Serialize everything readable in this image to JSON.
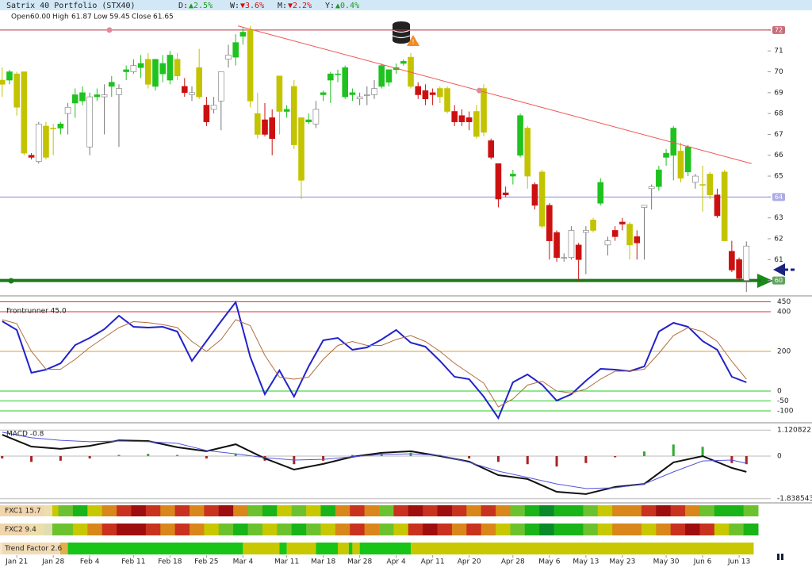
{
  "header": {
    "title": "Satrix 40 Portfolio (STX40)",
    "items": [
      {
        "label": "D:",
        "change": "▲2.5%",
        "color": "#1a9a1a"
      },
      {
        "label": "W:",
        "change": "▼3.6%",
        "color": "#cc1010"
      },
      {
        "label": "M:",
        "change": "▼2.2%",
        "color": "#cc1010"
      },
      {
        "label": "Y:",
        "change": "▲0.4%",
        "color": "#1a9a1a"
      }
    ],
    "ohlc": [
      {
        "label": "Open",
        "value": "60.00"
      },
      {
        "label": "High",
        "value": "61.87"
      },
      {
        "label": "Low",
        "value": "59.45"
      },
      {
        "label": "Close",
        "value": "61.65"
      }
    ]
  },
  "x_axis": {
    "xlim": [
      -0.3,
      103.6
    ],
    "ticks": [
      {
        "value": 2,
        "label": "Jan 21"
      },
      {
        "value": 7,
        "label": "Jan 28"
      },
      {
        "value": 12,
        "label": "Feb 4"
      },
      {
        "value": 18,
        "label": "Feb 11"
      },
      {
        "value": 23,
        "label": "Feb 18"
      },
      {
        "value": 28,
        "label": "Feb 25"
      },
      {
        "value": 33,
        "label": "Mar 4"
      },
      {
        "value": 39,
        "label": "Mar 11"
      },
      {
        "value": 44,
        "label": "Mar 18"
      },
      {
        "value": 49,
        "label": "Mar 28"
      },
      {
        "value": 54,
        "label": "Apr 4"
      },
      {
        "value": 59,
        "label": "Apr 11"
      },
      {
        "value": 64,
        "label": "Apr 20"
      },
      {
        "value": 70,
        "label": "Apr 28"
      },
      {
        "value": 75,
        "label": "May 6"
      },
      {
        "value": 80,
        "label": "May 13"
      },
      {
        "value": 85,
        "label": "May 23"
      },
      {
        "value": 91,
        "label": "May 30"
      },
      {
        "value": 96,
        "label": "Jun 6"
      },
      {
        "value": 101,
        "label": "Jun 13"
      }
    ]
  },
  "chart_data": [
    {
      "type": "candlestick",
      "open": [
        69.4,
        69.6,
        69.9,
        70.0,
        66.0,
        67.5,
        65.9,
        67.3,
        67.3,
        68.0,
        68.5,
        68.6,
        66.4,
        68.8,
        68.8,
        69.3,
        68.9,
        70.0,
        70.3,
        70.4,
        70.6,
        69.3,
        69.9,
        70.8,
        70.6,
        69.3,
        69.0,
        70.2,
        68.4,
        68.4,
        68.6,
        70.8,
        70.7,
        71.7,
        72.0,
        68.0,
        67.7,
        67.8,
        69.8,
        68.1,
        69.3,
        67.8,
        67.6,
        67.5,
        68.9,
        69.6,
        69.9,
        70.2,
        69.0,
        68.8,
        68.9,
        68.9,
        69.3,
        69.5,
        70.1,
        70.4,
        70.7,
        69.3,
        69.1,
        68.9,
        69.2,
        69.2,
        68.1,
        67.9,
        67.6,
        68.1,
        69.2,
        66.7,
        65.6,
        64.2,
        65.0,
        66.0,
        67.3,
        64.6,
        65.2,
        63.6,
        62.3,
        61.1,
        61.1,
        61.7,
        62.3,
        62.4,
        63.7,
        61.9,
        62.1,
        62.8,
        62.7,
        62.1,
        63.5,
        64.4,
        65.3,
        66.1,
        66.0,
        66.2,
        66.4,
        65.0,
        64.6,
        65.1,
        64.1,
        65.2,
        61.4,
        61.0,
        60.0
      ],
      "high": [
        70.2,
        70.1,
        70.0,
        70.0,
        66.1,
        67.6,
        67.6,
        67.5,
        67.6,
        68.5,
        69.2,
        69.3,
        69.0,
        69.2,
        69.4,
        69.8,
        69.4,
        70.3,
        70.6,
        70.8,
        70.9,
        70.6,
        70.8,
        71.0,
        70.9,
        69.7,
        69.3,
        71.1,
        68.8,
        68.8,
        69.9,
        71.3,
        71.8,
        72.1,
        72.2,
        69.0,
        68.5,
        68.2,
        69.8,
        68.4,
        69.6,
        67.8,
        68.0,
        68.6,
        69.1,
        70.0,
        70.1,
        70.3,
        69.2,
        69.0,
        69.3,
        69.6,
        70.4,
        70.1,
        70.4,
        70.6,
        70.9,
        69.5,
        69.4,
        69.2,
        69.3,
        69.3,
        68.4,
        68.2,
        68.1,
        68.4,
        69.4,
        66.8,
        65.6,
        64.5,
        65.3,
        68.0,
        67.4,
        64.7,
        65.3,
        63.7,
        62.4,
        61.3,
        62.6,
        61.8,
        62.6,
        63.0,
        64.9,
        62.1,
        62.6,
        63.0,
        62.8,
        62.4,
        63.6,
        64.6,
        65.5,
        66.3,
        67.4,
        66.6,
        66.5,
        65.1,
        65.5,
        65.2,
        64.4,
        65.3,
        61.9,
        61.1,
        61.87
      ],
      "low": [
        68.8,
        69.4,
        67.9,
        66.0,
        65.8,
        65.6,
        65.8,
        66.0,
        67.0,
        67.0,
        67.8,
        68.4,
        66.0,
        68.6,
        67.0,
        68.8,
        66.4,
        69.6,
        69.9,
        69.7,
        69.2,
        69.1,
        69.5,
        69.4,
        69.6,
        68.8,
        68.6,
        68.7,
        67.4,
        68.0,
        67.2,
        70.2,
        70.3,
        71.3,
        68.3,
        66.8,
        66.9,
        66.0,
        67.0,
        67.8,
        66.3,
        63.9,
        67.5,
        67.3,
        68.6,
        68.5,
        69.5,
        68.7,
        68.6,
        68.4,
        68.4,
        68.7,
        69.2,
        69.3,
        69.9,
        70.3,
        69.2,
        68.7,
        68.4,
        68.4,
        68.5,
        68.0,
        67.4,
        67.4,
        67.2,
        66.8,
        66.9,
        65.8,
        63.5,
        64.0,
        64.6,
        65.9,
        64.4,
        63.4,
        62.5,
        61.0,
        60.9,
        60.9,
        61.0,
        60.0,
        60.3,
        62.3,
        63.6,
        61.2,
        61.9,
        62.4,
        61.0,
        61.0,
        61.0,
        63.4,
        64.3,
        65.5,
        64.8,
        64.7,
        65.0,
        64.4,
        63.3,
        63.9,
        63.0,
        61.9,
        60.4,
        60.0,
        59.45
      ],
      "close": [
        69.6,
        70.0,
        68.3,
        66.1,
        65.9,
        65.7,
        67.4,
        67.3,
        67.5,
        68.3,
        68.9,
        69.0,
        68.8,
        68.9,
        68.9,
        69.5,
        69.2,
        70.1,
        70.0,
        70.2,
        69.4,
        70.6,
        70.4,
        69.6,
        69.8,
        69.0,
        68.9,
        68.8,
        67.6,
        68.2,
        70.0,
        70.6,
        71.4,
        71.9,
        68.6,
        67.0,
        67.0,
        66.8,
        68.1,
        68.2,
        66.5,
        64.8,
        67.7,
        68.2,
        69.0,
        69.9,
        69.9,
        68.8,
        68.9,
        68.7,
        68.9,
        69.2,
        70.3,
        70.1,
        70.2,
        70.5,
        69.3,
        68.9,
        68.7,
        69.0,
        68.8,
        68.1,
        67.6,
        67.6,
        67.8,
        66.9,
        67.1,
        65.9,
        63.9,
        64.1,
        65.1,
        67.9,
        65.0,
        63.6,
        62.6,
        61.9,
        61.1,
        61.1,
        62.4,
        61.0,
        62.4,
        62.9,
        64.7,
        61.7,
        62.4,
        62.7,
        61.7,
        61.8,
        63.6,
        64.5,
        64.5,
        65.9,
        67.3,
        64.9,
        65.2,
        64.7,
        64.6,
        64.1,
        63.1,
        61.9,
        60.5,
        60.1,
        61.65
      ],
      "colors": [
        "#c3c300",
        "#1fc21f",
        "#c3c300",
        "#c3c300",
        "#cc1010",
        "#ffffff",
        "#c3c300",
        "#c3c300",
        "#1fc21f",
        "#ffffff",
        "#1fc21f",
        "#1fc21f",
        "#ffffff",
        "#1fc21f",
        "#ffffff",
        "#1fc21f",
        "#ffffff",
        "#1fc21f",
        "#ffffff",
        "#1fc21f",
        "#c3c300",
        "#1fc21f",
        "#1fc21f",
        "#1fc21f",
        "#c3c300",
        "#cc1010",
        "#ffffff",
        "#c3c300",
        "#cc1010",
        "#ffffff",
        "#ffffff",
        "#ffffff",
        "#1fc21f",
        "#1fc21f",
        "#c3c300",
        "#c3c300",
        "#cc1010",
        "#cc1010",
        "#c3c300",
        "#1fc21f",
        "#c3c300",
        "#c3c300",
        "#1fc21f",
        "#ffffff",
        "#1fc21f",
        "#1fc21f",
        "#1fc21f",
        "#1fc21f",
        "#1fc21f",
        "#ffffff",
        "#ffffff",
        "#ffffff",
        "#1fc21f",
        "#1fc21f",
        "#1fc21f",
        "#1fc21f",
        "#c3c300",
        "#cc1010",
        "#cc1010",
        "#cc1010",
        "#c3c300",
        "#c3c300",
        "#cc1010",
        "#cc1010",
        "#cc1010",
        "#c3c300",
        "#c3c300",
        "#cc1010",
        "#cc1010",
        "#cc1010",
        "#1fc21f",
        "#1fc21f",
        "#c3c300",
        "#cc1010",
        "#c3c300",
        "#cc1010",
        "#cc1010",
        "#ffffff",
        "#ffffff",
        "#cc1010",
        "#ffffff",
        "#c3c300",
        "#1fc21f",
        "#ffffff",
        "#cc1010",
        "#cc1010",
        "#c3c300",
        "#cc1010",
        "#ffffff",
        "#ffffff",
        "#1fc21f",
        "#1fc21f",
        "#1fc21f",
        "#c3c300",
        "#1fc21f",
        "#ffffff",
        "#c3c300",
        "#c3c300",
        "#cc1010",
        "#c3c300",
        "#cc1010",
        "#cc1010",
        "#ffffff"
      ],
      "ylim": [
        59.3,
        72.3
      ],
      "yticks": [
        60,
        61,
        62,
        63,
        64,
        65,
        66,
        67,
        68,
        69,
        70,
        71,
        72
      ],
      "hlines": [
        {
          "value": 72,
          "color": "#b03040",
          "width": 1
        },
        {
          "value": 64,
          "color": "#8888dd",
          "width": 1
        },
        {
          "value": 60,
          "color": "#1a7a1a",
          "width": 4
        }
      ],
      "trendline": {
        "x": [
          32.3,
          102.7
        ],
        "y": [
          72.2,
          65.6
        ],
        "color": "#ee5555"
      },
      "markers": {
        "x": [
          14.7,
          65.4
        ],
        "y": [
          72,
          69.1
        ],
        "color": "#e08a9a"
      }
    },
    {
      "type": "line",
      "title": "Frontrunner 45.0",
      "ylim": [
        -148,
        472
      ],
      "yticks": [
        -100,
        -50,
        0,
        200,
        400,
        450
      ],
      "ytick_colors": [
        "#22cc22",
        "#22cc22",
        "#22cc22",
        "#e0a020",
        "#dd3333",
        "#dd3333"
      ],
      "x": [
        0,
        2,
        4,
        6,
        8,
        10,
        12,
        14,
        16,
        18,
        20,
        22,
        24,
        26,
        28,
        30,
        32,
        34,
        36,
        38,
        40,
        42,
        44,
        46,
        48,
        50,
        52,
        54,
        56,
        58,
        60,
        62,
        64,
        66,
        68,
        70,
        72,
        74,
        76,
        78,
        80,
        82,
        84,
        86,
        88,
        90,
        92,
        94,
        96,
        98,
        100,
        102
      ],
      "series": [
        {
          "color": "#2222cc",
          "width": 2,
          "values": [
            352,
            308,
            92,
            108,
            140,
            232,
            268,
            312,
            380,
            324,
            320,
            324,
            300,
            152,
            252,
            352,
            448,
            172,
            -16,
            104,
            -28,
            124,
            256,
            268,
            208,
            220,
            260,
            308,
            244,
            224,
            152,
            72,
            60,
            -28,
            -136,
            44,
            84,
            32,
            -48,
            -16,
            52,
            112,
            108,
            100,
            124,
            300,
            344,
            324,
            252,
            208,
            72,
            44
          ]
        },
        {
          "color": "#b07040",
          "width": 1,
          "values": [
            360,
            340,
            200,
            110,
            110,
            160,
            220,
            270,
            320,
            350,
            345,
            335,
            320,
            250,
            200,
            260,
            360,
            330,
            180,
            70,
            60,
            70,
            160,
            230,
            250,
            230,
            230,
            260,
            280,
            250,
            200,
            140,
            90,
            40,
            -80,
            -40,
            30,
            50,
            0,
            -10,
            10,
            60,
            100,
            100,
            110,
            190,
            280,
            320,
            300,
            250,
            150,
            60
          ]
        }
      ]
    },
    {
      "type": "macd",
      "title": "MACD -0.8",
      "ylim": [
        -1.95,
        1.3
      ],
      "yticks": [
        -1.838543,
        0,
        1.120822
      ],
      "x": [
        0,
        4,
        8,
        12,
        16,
        20,
        24,
        28,
        32,
        36,
        40,
        44,
        48,
        52,
        56,
        60,
        64,
        68,
        72,
        76,
        80,
        84,
        88,
        92,
        96,
        100,
        102
      ],
      "series": [
        {
          "color": "#111111",
          "width": 2,
          "values": [
            0.92,
            0.41,
            0.31,
            0.44,
            0.68,
            0.65,
            0.38,
            0.21,
            0.51,
            -0.1,
            -0.58,
            -0.34,
            -0.03,
            0.14,
            0.21,
            0,
            -0.24,
            -0.82,
            -0.99,
            -1.54,
            -1.64,
            -1.33,
            -1.2,
            -0.27,
            0,
            -0.51,
            -0.68
          ]
        },
        {
          "color": "#5555dd",
          "width": 1,
          "values": [
            1.03,
            0.79,
            0.68,
            0.62,
            0.65,
            0.62,
            0.55,
            0.24,
            0.1,
            -0.07,
            -0.17,
            -0.14,
            -0.03,
            0.07,
            0.1,
            0.03,
            -0.27,
            -0.65,
            -0.92,
            -1.2,
            -1.4,
            -1.37,
            -1.2,
            -0.68,
            -0.21,
            -0.17,
            -0.31
          ]
        }
      ],
      "histogram": [
        -0.1,
        -0.25,
        -0.2,
        -0.1,
        0.05,
        0.1,
        0.05,
        -0.1,
        0.1,
        -0.2,
        -0.35,
        -0.2,
        0.05,
        0.1,
        0.15,
        0.05,
        -0.1,
        -0.25,
        -0.35,
        -0.45,
        -0.3,
        -0.05,
        0.2,
        0.5,
        0.4,
        -0.3,
        -0.35
      ],
      "up_color": "#33aa33",
      "down_color": "#aa2222"
    },
    {
      "type": "heatmap",
      "title": "FXC1 15.7",
      "colors": [
        "#d9861a",
        "#d9861a",
        "#d9861a",
        "#c8c800",
        "#6cc22e",
        "#18b418",
        "#c8c800",
        "#d9861a",
        "#c8321e",
        "#9e0e0e",
        "#c8321e",
        "#d9861a",
        "#c8321e",
        "#d9861a",
        "#c8321e",
        "#9e0e0e",
        "#d9861a",
        "#6cc22e",
        "#18b418",
        "#c8c800",
        "#6cc22e",
        "#c8c800",
        "#18b418",
        "#d9861a",
        "#c8321e",
        "#d9861a",
        "#6cc22e",
        "#c8321e",
        "#9e0e0e",
        "#c8321e",
        "#9e0e0e",
        "#c8321e",
        "#d9861a",
        "#c8321e",
        "#d9861a",
        "#6cc22e",
        "#18b418",
        "#0a8a2a",
        "#18b418",
        "#18b418",
        "#6cc22e",
        "#c8c800",
        "#d9861a",
        "#d9861a",
        "#c8321e",
        "#9e0e0e",
        "#c8321e",
        "#d9861a",
        "#6cc22e",
        "#18b418",
        "#18b418",
        "#6cc22e"
      ]
    },
    {
      "type": "heatmap",
      "title": "FXC2 9.4",
      "colors": [
        "#d9861a",
        "#d9861a",
        "#c8c800",
        "#6cc22e",
        "#6cc22e",
        "#c8c800",
        "#d9861a",
        "#c8321e",
        "#9e0e0e",
        "#9e0e0e",
        "#c8321e",
        "#d9861a",
        "#c8321e",
        "#d9861a",
        "#c8c800",
        "#6cc22e",
        "#18b418",
        "#6cc22e",
        "#c8c800",
        "#6cc22e",
        "#18b418",
        "#6cc22e",
        "#c8c800",
        "#d9861a",
        "#c8321e",
        "#d9861a",
        "#6cc22e",
        "#c8c800",
        "#c8321e",
        "#9e0e0e",
        "#c8321e",
        "#d9861a",
        "#c8321e",
        "#d9861a",
        "#c8c800",
        "#6cc22e",
        "#18b418",
        "#0a8a2a",
        "#18b418",
        "#18b418",
        "#6cc22e",
        "#c8c800",
        "#d9861a",
        "#d9861a",
        "#c8c800",
        "#d9861a",
        "#c8321e",
        "#9e0e0e",
        "#c8321e",
        "#c8c800",
        "#6cc22e",
        "#18b418"
      ]
    },
    {
      "type": "segments",
      "title": "Trend Factor 2.6",
      "segments": [
        {
          "from": 0,
          "to": 9,
          "color": "#e0b050"
        },
        {
          "from": 9,
          "to": 33,
          "color": "#18c418"
        },
        {
          "from": 33,
          "to": 38,
          "color": "#c8c800"
        },
        {
          "from": 38,
          "to": 39,
          "color": "#18c418"
        },
        {
          "from": 39,
          "to": 43,
          "color": "#c8c800"
        },
        {
          "from": 43,
          "to": 46,
          "color": "#18c418"
        },
        {
          "from": 46,
          "to": 47.5,
          "color": "#c8c800"
        },
        {
          "from": 47.5,
          "to": 48,
          "color": "#18c418"
        },
        {
          "from": 48,
          "to": 49,
          "color": "#c8c800"
        },
        {
          "from": 49,
          "to": 56,
          "color": "#18c418"
        },
        {
          "from": 56,
          "to": 103,
          "color": "#c8c800"
        }
      ]
    }
  ]
}
